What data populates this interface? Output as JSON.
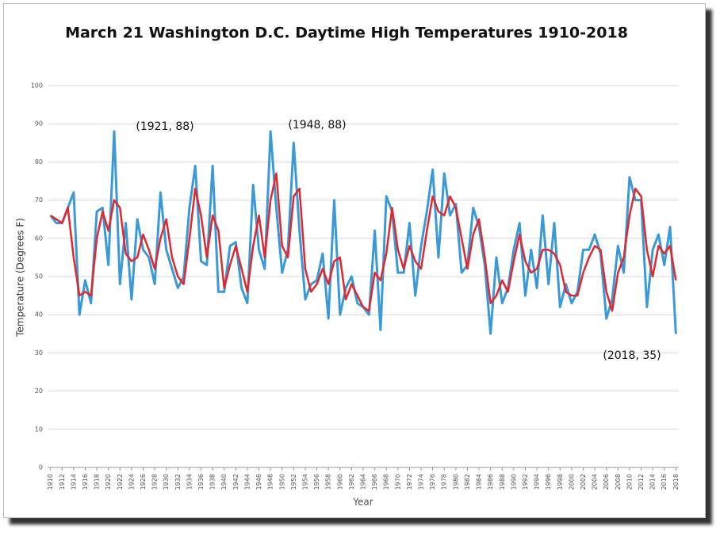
{
  "chart_data": {
    "type": "line",
    "title": "March 21 Washington D.C. Daytime High Temperatures 1910-2018",
    "x_label": "Year",
    "y_label": "Temperature (Degrees F)",
    "x": [
      1910,
      1911,
      1912,
      1913,
      1914,
      1915,
      1916,
      1917,
      1918,
      1919,
      1920,
      1921,
      1922,
      1923,
      1924,
      1925,
      1926,
      1927,
      1928,
      1929,
      1930,
      1931,
      1932,
      1933,
      1934,
      1935,
      1936,
      1937,
      1938,
      1939,
      1940,
      1941,
      1942,
      1943,
      1944,
      1945,
      1946,
      1947,
      1948,
      1949,
      1950,
      1951,
      1952,
      1953,
      1954,
      1955,
      1956,
      1957,
      1958,
      1959,
      1960,
      1961,
      1962,
      1963,
      1964,
      1965,
      1966,
      1967,
      1968,
      1969,
      1970,
      1971,
      1972,
      1973,
      1974,
      1975,
      1976,
      1977,
      1978,
      1979,
      1980,
      1981,
      1982,
      1983,
      1984,
      1985,
      1986,
      1987,
      1988,
      1989,
      1990,
      1991,
      1992,
      1993,
      1994,
      1995,
      1996,
      1997,
      1998,
      1999,
      2000,
      2001,
      2002,
      2003,
      2004,
      2005,
      2006,
      2007,
      2008,
      2009,
      2010,
      2011,
      2012,
      2013,
      2014,
      2015,
      2016,
      2017,
      2018
    ],
    "series": [
      {
        "color": "#3a9ad9",
        "width": 3,
        "values": [
          66,
          64,
          64,
          68,
          72,
          40,
          49,
          43,
          67,
          68,
          53,
          88,
          48,
          64,
          44,
          65,
          57,
          55,
          48,
          72,
          57,
          52,
          47,
          50,
          68,
          79,
          54,
          53,
          79,
          46,
          46,
          58,
          59,
          47,
          43,
          74,
          57,
          52,
          88,
          68,
          51,
          57,
          85,
          62,
          44,
          48,
          49,
          56,
          39,
          70,
          40,
          47,
          50,
          43,
          42,
          40,
          62,
          36,
          71,
          67,
          51,
          51,
          64,
          45,
          58,
          67,
          78,
          55,
          77,
          66,
          69,
          51,
          53,
          68,
          63,
          53,
          35,
          55,
          43,
          47,
          57,
          64,
          45,
          57,
          47,
          66,
          48,
          64,
          42,
          48,
          43,
          46,
          57,
          57,
          61,
          56,
          39,
          44,
          58,
          51,
          76,
          70,
          70,
          42,
          57,
          61,
          53,
          63,
          35
        ]
      },
      {
        "color": "#e0282e",
        "width": 2.5,
        "values": [
          66,
          65,
          64,
          68,
          55,
          45,
          46,
          45,
          60,
          67,
          62,
          70,
          68,
          56,
          54,
          55,
          61,
          57,
          52,
          60,
          65,
          55,
          50,
          48,
          60,
          73,
          66,
          55,
          66,
          62,
          47,
          53,
          58,
          52,
          46,
          58,
          66,
          55,
          70,
          77,
          58,
          55,
          71,
          73,
          52,
          46,
          48,
          52,
          48,
          54,
          55,
          44,
          48,
          45,
          42,
          41,
          51,
          49,
          56,
          68,
          57,
          52,
          58,
          54,
          52,
          62,
          71,
          67,
          66,
          71,
          68,
          60,
          52,
          61,
          65,
          55,
          43,
          45,
          49,
          46,
          54,
          61,
          54,
          51,
          52,
          57,
          57,
          56,
          53,
          46,
          45,
          45,
          51,
          55,
          58,
          57,
          46,
          41,
          51,
          55,
          66,
          73,
          71,
          57,
          50,
          58,
          56,
          58,
          49
        ]
      }
    ],
    "xlim": [
      1909.5,
      2018.5
    ],
    "xticks": [
      1910,
      1912,
      1914,
      1916,
      1918,
      1920,
      1922,
      1924,
      1926,
      1928,
      1930,
      1932,
      1934,
      1936,
      1938,
      1940,
      1942,
      1944,
      1946,
      1948,
      1950,
      1952,
      1954,
      1956,
      1958,
      1960,
      1962,
      1964,
      1966,
      1968,
      1970,
      1972,
      1974,
      1976,
      1978,
      1980,
      1982,
      1984,
      1986,
      1988,
      1990,
      1992,
      1994,
      1996,
      1998,
      2000,
      2002,
      2004,
      2006,
      2008,
      2010,
      2012,
      2014,
      2016,
      2018
    ],
    "ylim": [
      0,
      100
    ],
    "yticks": [
      0,
      10,
      20,
      30,
      40,
      50,
      60,
      70,
      80,
      90,
      100
    ],
    "grid": true,
    "annotations": [
      "(1921, 88)",
      "(1948, 88)",
      "(2018, 35)"
    ]
  }
}
